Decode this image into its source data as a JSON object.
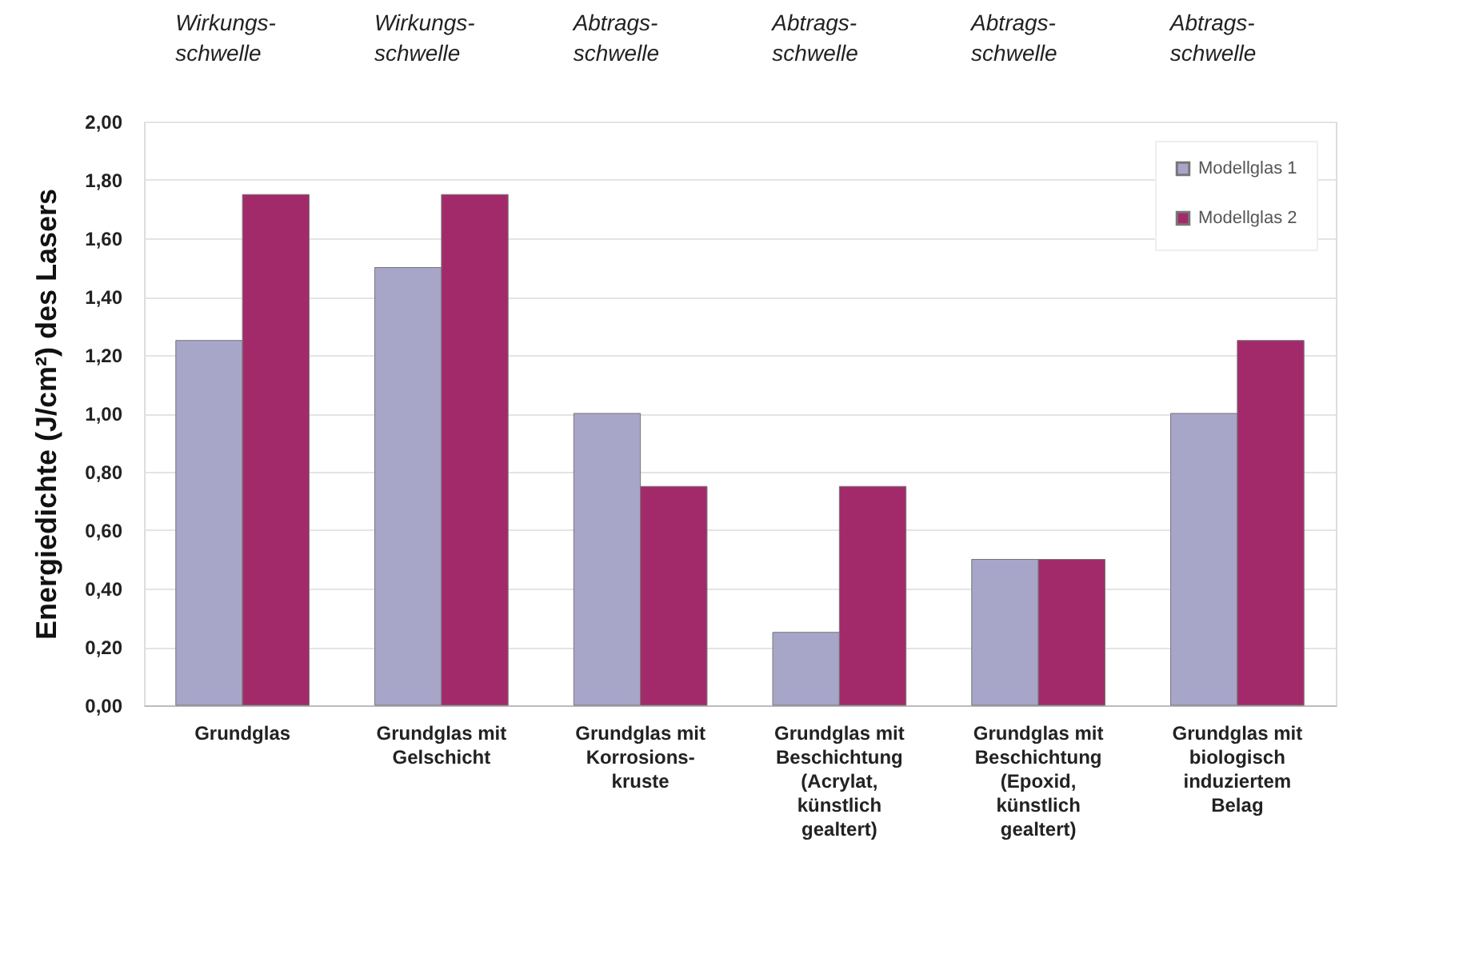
{
  "chart_data": {
    "type": "bar",
    "ylabel": "Energiedichte (J/cm²) des Lasers",
    "categories": [
      "Grundglas",
      "Grundglas mit\nGelschicht",
      "Grundglas mit\nKorrosions-\nkruste",
      "Grundglas mit\nBeschichtung\n(Acrylat,\nkünstlich\ngealtert)",
      "Grundglas mit\nBeschichtung\n(Epoxid,\nkünstlich\ngealtert)",
      "Grundglas mit\nbiologisch\ninduziertem\nBelag"
    ],
    "series": [
      {
        "name": "Modellglas 1",
        "color": "#a7a5c8",
        "values": [
          1.25,
          1.5,
          1.0,
          0.25,
          0.5,
          1.0
        ]
      },
      {
        "name": "Modellglas 2",
        "color": "#a32a6a",
        "values": [
          1.75,
          1.75,
          0.75,
          0.75,
          0.5,
          1.25
        ]
      }
    ],
    "annotations": [
      "Wirkungs-\nschwelle",
      "Wirkungs-\nschwelle",
      "Abtrags-\nschwelle",
      "Abtrags-\nschwelle",
      "Abtrags-\nschwelle",
      "Abtrags-\nschwelle"
    ],
    "ylim": [
      0,
      2
    ],
    "yticks": [
      {
        "value": 0,
        "label": "0,00"
      },
      {
        "value": 0.2,
        "label": "0,20"
      },
      {
        "value": 0.4,
        "label": "0,40"
      },
      {
        "value": 0.6,
        "label": "0,60"
      },
      {
        "value": 0.8,
        "label": "0,80"
      },
      {
        "value": 1,
        "label": "1,00"
      },
      {
        "value": 1.2,
        "label": "1,20"
      },
      {
        "value": 1.4,
        "label": "1,40"
      },
      {
        "value": 1.6,
        "label": "1,60"
      },
      {
        "value": 1.8,
        "label": "1,80"
      },
      {
        "value": 2,
        "label": "2,00"
      }
    ],
    "grid": "y",
    "legend": "top right"
  }
}
